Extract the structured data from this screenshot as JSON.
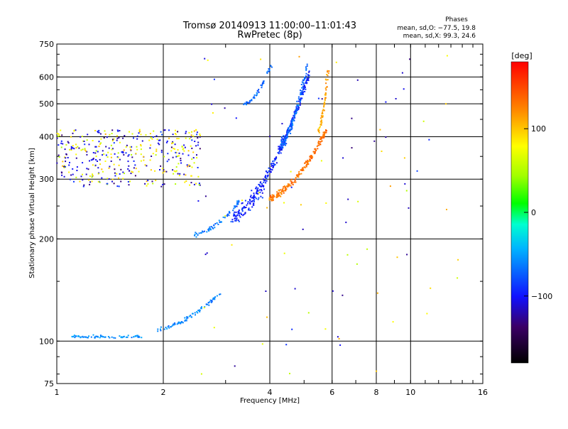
{
  "title_line1": "Tromsø 20140913 11:00:00–11:01:43",
  "title_line2": "RwPretec (8p)",
  "phases": {
    "heading": "Phases",
    "line_o": "mean, sd,O: −77.5, 19.8",
    "line_x": "mean, sd,X:  99.3, 24.6"
  },
  "colorbar": {
    "unit_label": "[deg]",
    "range": [
      -180,
      180
    ],
    "tick_values": [
      100,
      0,
      -100
    ],
    "tick_labels": [
      "100",
      "0",
      "−100"
    ]
  },
  "chart_data": {
    "type": "scatter",
    "xlabel": "Frequency [MHz]",
    "ylabel": "Stationary phase Virtual Height [km]",
    "x_scale": "log",
    "y_scale": "log",
    "xlim": [
      1,
      16
    ],
    "ylim": [
      75,
      750
    ],
    "x_ticks": [
      1,
      2,
      4,
      6,
      8,
      10,
      16
    ],
    "x_tick_labels": [
      "1",
      "2",
      "4",
      "6",
      "8",
      "10",
      "16"
    ],
    "y_ticks": [
      75,
      100,
      200,
      300,
      400,
      500,
      600,
      750
    ],
    "y_tick_labels": [
      "75",
      "100",
      "200",
      "300",
      "400",
      "500",
      "600",
      "750"
    ],
    "grid": true,
    "traces": [
      {
        "desc": "E-layer trace",
        "f_start": 1.1,
        "f_end": 1.75,
        "h_start": 103,
        "h_end": 103,
        "phase": -55,
        "n": 70,
        "jitter": 1.5
      },
      {
        "desc": "Es/E trace",
        "f_start": 1.9,
        "f_end": 2.9,
        "h_start": 108,
        "h_end": 138,
        "phase": -60,
        "n": 80,
        "jitter": 2
      },
      {
        "desc": "F1 lower trace",
        "f_start": 2.45,
        "f_end": 3.3,
        "h_start": 205,
        "h_end": 260,
        "phase": -65,
        "n": 60,
        "jitter": 4
      },
      {
        "desc": "F O-mode trace",
        "f_start": 3.1,
        "f_end": 5.2,
        "h_start": 230,
        "h_end": 620,
        "phase": -95,
        "n": 300,
        "jitter": 20
      },
      {
        "desc": "F O-mode upper cusp",
        "f_start": 4.3,
        "f_end": 5.1,
        "h_start": 380,
        "h_end": 650,
        "phase": -70,
        "n": 120,
        "jitter": 25
      },
      {
        "desc": "F upper short trace",
        "f_start": 3.4,
        "f_end": 4.05,
        "h_start": 500,
        "h_end": 650,
        "phase": -70,
        "n": 50,
        "jitter": 10
      },
      {
        "desc": "F X-mode trace",
        "f_start": 4.0,
        "f_end": 5.8,
        "h_start": 265,
        "h_end": 420,
        "phase": 130,
        "n": 200,
        "jitter": 10
      },
      {
        "desc": "F X-mode upper",
        "f_start": 5.5,
        "f_end": 5.85,
        "h_start": 420,
        "h_end": 640,
        "phase": 110,
        "n": 60,
        "jitter": 15
      }
    ],
    "scatter_blocks": [
      {
        "desc": "spread F noise low freq",
        "f_range": [
          1.0,
          2.55
        ],
        "h_range": [
          285,
          420
        ],
        "n": 420
      },
      {
        "desc": "sparse noise",
        "f_range": [
          2.5,
          14
        ],
        "h_range": [
          80,
          700
        ],
        "n": 90
      }
    ]
  }
}
